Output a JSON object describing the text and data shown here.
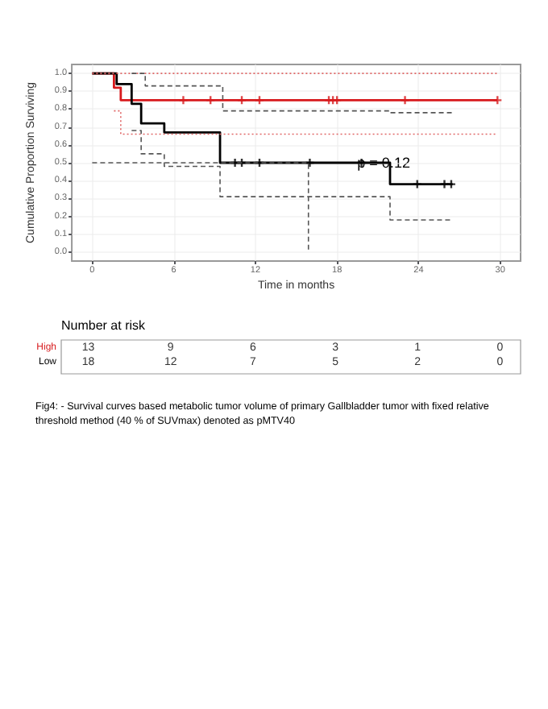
{
  "chart_data": {
    "type": "step",
    "xlabel": "Time in months",
    "ylabel": "Cumulative Proportion Surviving",
    "xlim": [
      -1.5,
      31.5
    ],
    "ylim": [
      -0.05,
      1.05
    ],
    "xticks": [
      0,
      6,
      12,
      18,
      24,
      30
    ],
    "yticks": [
      {
        "value": 0,
        "label": "0.0"
      },
      0.1,
      0.2,
      0.3,
      0.4,
      0.5,
      0.6,
      0.7,
      0.8,
      0.9,
      {
        "value": 1,
        "label": "1.0"
      }
    ],
    "grid": true,
    "legend": false,
    "series": [
      {
        "name": "High",
        "color": "#d7191c",
        "x": [
          0,
          1.6,
          2.1,
          29.8
        ],
        "values": [
          1,
          0.92,
          0.85,
          0.85
        ]
      },
      {
        "name": "Low",
        "color": "#000000",
        "x": [
          0,
          1.8,
          2.9,
          3.6,
          5.3,
          9.4,
          21.9,
          26.5
        ],
        "values": [
          1,
          0.94,
          0.83,
          0.72,
          0.67,
          0.5,
          0.38,
          0.38
        ]
      },
      {
        "type": "scatter",
        "marker": "cross",
        "color": "#d7191c",
        "x": [
          6.7,
          8.7,
          11,
          12.3,
          17.4,
          17.7,
          18,
          23,
          29.8
        ],
        "values": [
          0.85,
          0.85,
          0.85,
          0.85,
          0.85,
          0.85,
          0.85,
          0.85,
          0.85
        ]
      },
      {
        "type": "scatter",
        "marker": "cross",
        "color": "#000000",
        "x": [
          10.5,
          11,
          12.3,
          16,
          19.8,
          23.9,
          25.9,
          26.4
        ],
        "values": [
          0.5,
          0.5,
          0.5,
          0.5,
          0.5,
          0.38,
          0.38,
          0.38
        ]
      },
      {
        "line_style": "dotted",
        "color": "#e06666",
        "x": [
          0,
          29.8
        ],
        "values": [
          1,
          1
        ]
      },
      {
        "line_style": "dotted",
        "color": "#e06666",
        "x": [
          1.6,
          2.1,
          29.8
        ],
        "values": [
          0.79,
          0.66,
          0.66
        ]
      },
      {
        "line_style": "dashed",
        "color": "#555555",
        "x": [
          2.9,
          3.9,
          9.6,
          21.9,
          26.5
        ],
        "values": [
          1,
          0.93,
          0.79,
          0.78,
          0.78
        ]
      },
      {
        "line_style": "dashed",
        "color": "#555555",
        "x": [
          2.9,
          3.6,
          5.3,
          9.4,
          21.9,
          26.5
        ],
        "values": [
          0.68,
          0.55,
          0.48,
          0.31,
          0.18,
          0.18
        ]
      },
      {
        "line_style": "dashed",
        "color": "#555555",
        "x": [
          0,
          15.9,
          15.9
        ],
        "values": [
          0.5,
          0.5,
          0
        ]
      }
    ],
    "annotations": [
      {
        "text": "p = 0.12",
        "x": 19.6,
        "y": 0.5
      },
      "Number at risk",
      "13",
      "9",
      "6",
      "3",
      "1",
      "0",
      "18",
      "12",
      "7",
      "5",
      "2",
      "0",
      "Fig4: - Survival curves based metabolic tumor volume of primary Gallbladder tumor with fixed relative threshold method (40 % of SUVmax) denoted as pMTV40"
    ]
  }
}
